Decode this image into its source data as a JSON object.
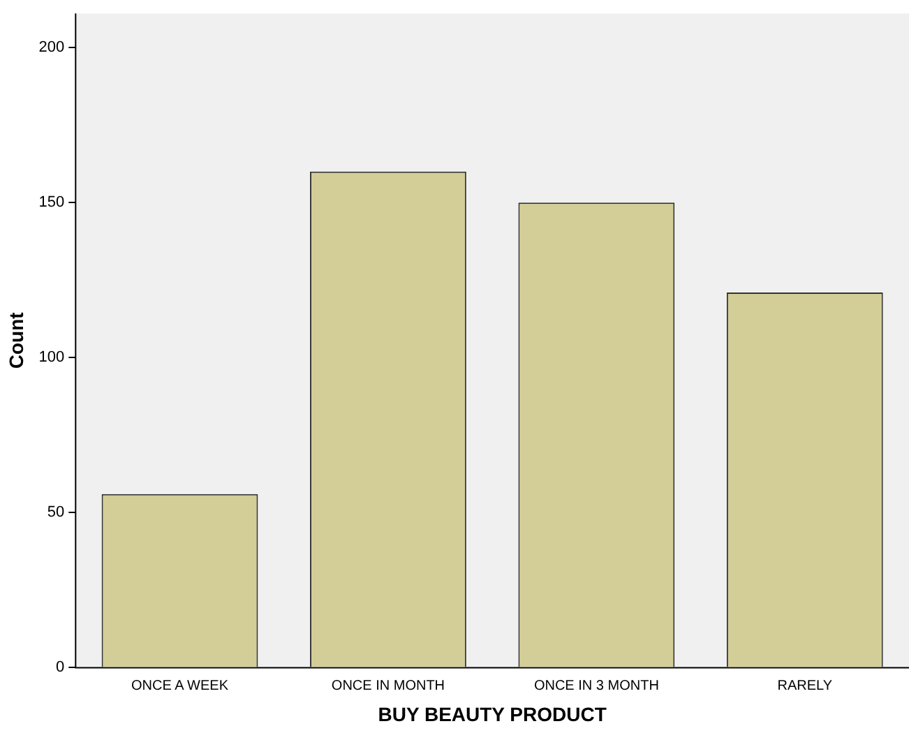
{
  "chart_data": {
    "type": "bar",
    "xlabel": "BUY BEAUTY PRODUCT",
    "ylabel": "Count",
    "categories": [
      "ONCE A WEEK",
      "ONCE IN MONTH",
      "ONCE IN 3 MONTH",
      "RARELY"
    ],
    "values": [
      56,
      160,
      150,
      121
    ],
    "color": "#d3ce97",
    "ylim": [
      0,
      211
    ],
    "yticks": [
      0,
      50,
      100,
      150,
      200
    ],
    "grid": false,
    "legend": false
  }
}
